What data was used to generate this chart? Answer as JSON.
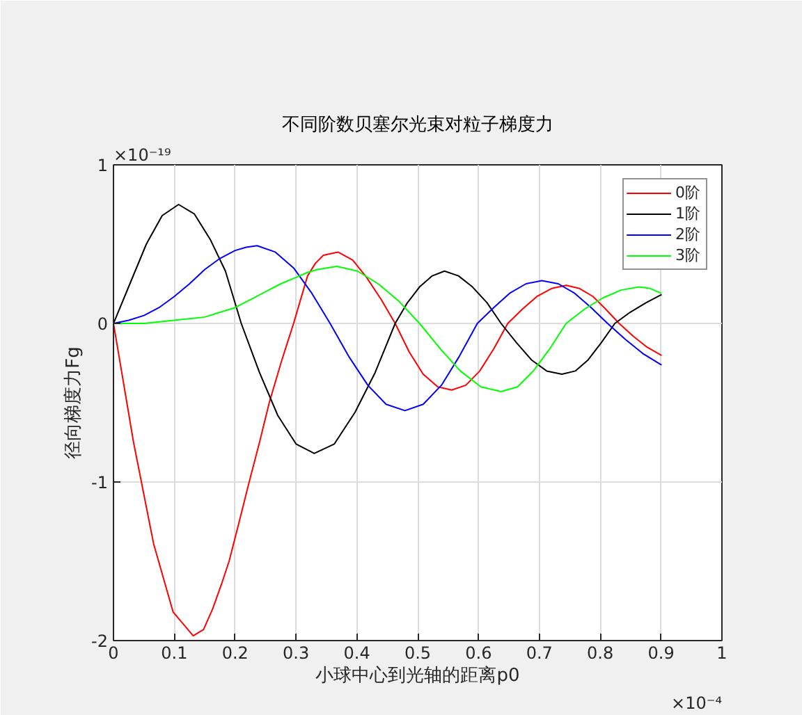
{
  "chart_data": {
    "type": "line",
    "title": "不同阶数贝塞尔光束对粒子梯度力",
    "xlabel": "小球中心到光轴的距离p0",
    "ylabel": "径向梯度力Fg",
    "annotations": [
      "×10⁻¹⁹",
      "×10⁻⁴"
    ],
    "xlim": [
      0,
      1
    ],
    "xticks": [
      0,
      0.1,
      0.2,
      0.3,
      0.4,
      0.5,
      0.6,
      0.7,
      0.8,
      0.9,
      1
    ],
    "ylim": [
      -2,
      1
    ],
    "yticks": [
      -2,
      -1,
      0,
      1
    ],
    "grid": true,
    "legend": "top right",
    "line_style": "solid",
    "series": [
      {
        "name": "0阶",
        "color": "#ff0000",
        "x": [
          0,
          0.033,
          0.066,
          0.098,
          0.131,
          0.148,
          0.163,
          0.177,
          0.19,
          0.206,
          0.223,
          0.24,
          0.256,
          0.276,
          0.296,
          0.319,
          0.332,
          0.345,
          0.357,
          0.369,
          0.393,
          0.416,
          0.44,
          0.463,
          0.486,
          0.509,
          0.533,
          0.556,
          0.579,
          0.602,
          0.625,
          0.648,
          0.672,
          0.696,
          0.72,
          0.744,
          0.766,
          0.788,
          0.809,
          0.831,
          0.854,
          0.877,
          0.9
        ],
        "values": [
          0,
          -0.75,
          -1.39,
          -1.82,
          -1.97,
          -1.93,
          -1.8,
          -1.65,
          -1.5,
          -1.26,
          -1.0,
          -0.75,
          -0.5,
          -0.24,
          0,
          0.3,
          0.38,
          0.43,
          0.44,
          0.45,
          0.4,
          0.29,
          0.15,
          0,
          -0.18,
          -0.32,
          -0.4,
          -0.42,
          -0.39,
          -0.3,
          -0.16,
          0,
          0.09,
          0.17,
          0.22,
          0.24,
          0.22,
          0.17,
          0.09,
          0,
          -0.08,
          -0.15,
          -0.2
        ]
      },
      {
        "name": "1阶",
        "color": "#000000",
        "x": [
          0,
          0.027,
          0.054,
          0.08,
          0.107,
          0.133,
          0.159,
          0.184,
          0.21,
          0.24,
          0.27,
          0.3,
          0.33,
          0.363,
          0.397,
          0.43,
          0.463,
          0.483,
          0.503,
          0.524,
          0.544,
          0.567,
          0.59,
          0.614,
          0.637,
          0.662,
          0.687,
          0.712,
          0.737,
          0.759,
          0.78,
          0.802,
          0.824,
          0.849,
          0.875,
          0.9
        ],
        "values": [
          0,
          0.25,
          0.5,
          0.68,
          0.75,
          0.69,
          0.53,
          0.33,
          0,
          -0.31,
          -0.58,
          -0.76,
          -0.82,
          -0.76,
          -0.56,
          -0.31,
          0,
          0.13,
          0.23,
          0.3,
          0.33,
          0.3,
          0.23,
          0.13,
          0,
          -0.12,
          -0.23,
          -0.3,
          -0.32,
          -0.3,
          -0.23,
          -0.12,
          0,
          0.07,
          0.13,
          0.18
        ]
      },
      {
        "name": "2阶",
        "color": "#0000ff",
        "x": [
          0,
          0.025,
          0.05,
          0.075,
          0.1,
          0.125,
          0.15,
          0.175,
          0.2,
          0.218,
          0.236,
          0.266,
          0.296,
          0.326,
          0.356,
          0.387,
          0.418,
          0.448,
          0.479,
          0.509,
          0.539,
          0.568,
          0.598,
          0.625,
          0.651,
          0.678,
          0.704,
          0.731,
          0.758,
          0.785,
          0.812,
          0.841,
          0.87,
          0.9
        ],
        "values": [
          0,
          0.02,
          0.05,
          0.1,
          0.17,
          0.25,
          0.34,
          0.41,
          0.46,
          0.48,
          0.49,
          0.45,
          0.35,
          0.19,
          0,
          -0.21,
          -0.39,
          -0.51,
          -0.55,
          -0.51,
          -0.39,
          -0.21,
          0,
          0.1,
          0.19,
          0.25,
          0.27,
          0.25,
          0.19,
          0.1,
          0,
          -0.1,
          -0.19,
          -0.26
        ]
      },
      {
        "name": "3阶",
        "color": "#00ff00",
        "x": [
          0,
          0.025,
          0.05,
          0.075,
          0.1,
          0.125,
          0.15,
          0.175,
          0.2,
          0.225,
          0.25,
          0.275,
          0.3,
          0.318,
          0.335,
          0.351,
          0.367,
          0.401,
          0.435,
          0.469,
          0.503,
          0.537,
          0.57,
          0.604,
          0.637,
          0.664,
          0.69,
          0.717,
          0.744,
          0.774,
          0.804,
          0.834,
          0.864,
          0.882,
          0.9
        ],
        "values": [
          0,
          0,
          0,
          0.01,
          0.02,
          0.03,
          0.04,
          0.07,
          0.1,
          0.15,
          0.2,
          0.25,
          0.29,
          0.32,
          0.34,
          0.35,
          0.36,
          0.33,
          0.25,
          0.14,
          0,
          -0.16,
          -0.3,
          -0.4,
          -0.43,
          -0.4,
          -0.3,
          -0.16,
          0,
          0.09,
          0.16,
          0.21,
          0.23,
          0.22,
          0.19
        ]
      }
    ]
  }
}
